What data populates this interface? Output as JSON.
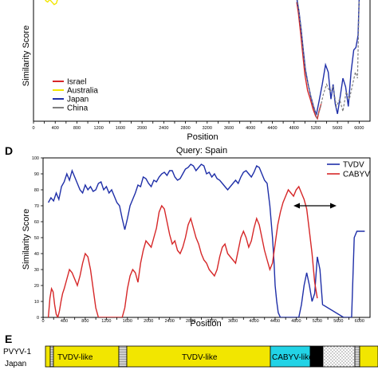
{
  "panel_top": {
    "xlabel": "Position",
    "ylabel": "Similarity Score",
    "x_ticks": [
      "0",
      "200",
      "400",
      "600",
      "800",
      "1000",
      "1200",
      "1400",
      "1600",
      "1800",
      "2000",
      "2200",
      "2400",
      "2600",
      "2800",
      "3000",
      "3200",
      "3400",
      "3600",
      "3800",
      "4000",
      "4200",
      "4400",
      "4600",
      "4800",
      "5000",
      "5200",
      "5400",
      "5600",
      "5800",
      "6000"
    ],
    "x_tick_labels": [
      "0",
      "400",
      "800",
      "1200",
      "1600",
      "2000",
      "2400",
      "2800",
      "3200",
      "3600",
      "4000",
      "4400",
      "4800",
      "5200",
      "5600",
      "6000"
    ],
    "legend": [
      {
        "name": "Israel",
        "color": "#d62728"
      },
      {
        "name": "Australia",
        "color": "#f2e600"
      },
      {
        "name": "Japan",
        "color": "#1f2fa8"
      },
      {
        "name": "China",
        "color": "#7f7f7f"
      }
    ]
  },
  "panel_d": {
    "letter": "D",
    "title": "Query: Spain",
    "xlabel": "Position",
    "ylabel": "Similarity Score",
    "legend": [
      {
        "name": "TVDV",
        "color": "#1f2fa8"
      },
      {
        "name": "CABYV",
        "color": "#d62728"
      }
    ]
  },
  "panel_e": {
    "letter": "E",
    "row_label_1": "PVYV-1",
    "row_label_2": "Japan",
    "segments": [
      {
        "label": "",
        "color": "#f2e600"
      },
      {
        "label": "TVDV-like",
        "color": "#f2e600"
      },
      {
        "label": "TVDV-like",
        "color": "#f2e600"
      },
      {
        "label": "CABYV-like",
        "color": "#22d3e6"
      }
    ]
  },
  "chart_data": [
    {
      "type": "line",
      "panel": "top",
      "xlabel": "Position",
      "ylabel": "Similarity Score",
      "xlim": [
        0,
        6200
      ],
      "ylim": [
        0,
        100
      ],
      "x_ticks": [
        0,
        200,
        400,
        600,
        800,
        1000,
        1200,
        1400,
        1600,
        1800,
        2000,
        2200,
        2400,
        2600,
        2800,
        3000,
        3200,
        3400,
        3600,
        3800,
        4000,
        4200,
        4400,
        4600,
        4800,
        5000,
        5200,
        5400,
        5600,
        5800,
        6000
      ],
      "series": [
        {
          "name": "Israel",
          "color": "#d62728",
          "x": [
            4850,
            4880,
            4920,
            4960,
            5000,
            5050,
            5100,
            5150,
            5200,
            5230,
            5260,
            5300
          ],
          "y": [
            97,
            88,
            72,
            55,
            38,
            25,
            18,
            10,
            4,
            2,
            8,
            14
          ]
        },
        {
          "name": "Australia",
          "color": "#f2e600",
          "x": [
            200,
            230,
            260,
            300,
            340,
            380,
            420,
            450
          ],
          "y": [
            100,
            98,
            97,
            99,
            97,
            95,
            96,
            100
          ]
        },
        {
          "name": "Japan",
          "color": "#1f2fa8",
          "x": [
            4850,
            4890,
            4930,
            4970,
            5010,
            5060,
            5110,
            5160,
            5210,
            5260,
            5320,
            5380,
            5430,
            5480,
            5520,
            5560,
            5600,
            5650,
            5700,
            5750,
            5800,
            5850,
            5900,
            5940,
            5980,
            6000
          ],
          "y": [
            100,
            90,
            75,
            58,
            42,
            30,
            20,
            12,
            5,
            16,
            30,
            46,
            40,
            18,
            30,
            14,
            6,
            20,
            35,
            28,
            12,
            40,
            58,
            60,
            70,
            100
          ]
        },
        {
          "name": "China",
          "color": "#7f7f7f",
          "x": [
            4860,
            4900,
            4940,
            4980,
            5020,
            5070,
            5120,
            5170,
            5220,
            5280,
            5340,
            5400,
            5460,
            5520,
            5580,
            5640,
            5700,
            5760,
            5820,
            5880,
            5930,
            5970,
            6000
          ],
          "y": [
            100,
            86,
            70,
            52,
            38,
            28,
            18,
            10,
            3,
            10,
            22,
            30,
            24,
            28,
            12,
            18,
            8,
            24,
            18,
            30,
            40,
            35,
            100
          ]
        }
      ]
    },
    {
      "type": "line",
      "panel": "D",
      "title": "Query: Spain",
      "xlabel": "Position",
      "ylabel": "Similarity Score",
      "xlim": [
        0,
        6200
      ],
      "ylim": [
        0,
        100
      ],
      "x_ticks": [
        0,
        200,
        400,
        600,
        800,
        1000,
        1200,
        1400,
        1600,
        1800,
        2000,
        2200,
        2400,
        2600,
        2800,
        3000,
        3200,
        3400,
        3600,
        3800,
        4000,
        4200,
        4400,
        4600,
        4800,
        5000,
        5200,
        5400,
        5600,
        5800,
        6000
      ],
      "x_tick_labels": [
        "0",
        "400",
        "800",
        "1200",
        "1600",
        "2000",
        "2400",
        "2800",
        "3200",
        "3600",
        "4000",
        "4400",
        "4800",
        "5200",
        "5600",
        "6000"
      ],
      "y_ticks": [
        0,
        10,
        20,
        30,
        40,
        50,
        60,
        70,
        80,
        90,
        100
      ],
      "series": [
        {
          "name": "TVDV",
          "color": "#1f2fa8",
          "x": [
            100,
            150,
            200,
            250,
            300,
            350,
            400,
            450,
            500,
            550,
            600,
            650,
            700,
            750,
            800,
            850,
            900,
            950,
            1000,
            1050,
            1100,
            1150,
            1200,
            1250,
            1300,
            1350,
            1400,
            1450,
            1500,
            1550,
            1600,
            1650,
            1700,
            1750,
            1800,
            1850,
            1900,
            1950,
            2000,
            2050,
            2100,
            2150,
            2200,
            2250,
            2300,
            2350,
            2400,
            2450,
            2500,
            2550,
            2600,
            2650,
            2700,
            2750,
            2800,
            2850,
            2900,
            2950,
            3000,
            3050,
            3100,
            3150,
            3200,
            3250,
            3300,
            3350,
            3400,
            3450,
            3500,
            3550,
            3600,
            3650,
            3700,
            3750,
            3800,
            3850,
            3900,
            3950,
            4000,
            4050,
            4100,
            4150,
            4200,
            4250,
            4300,
            4350,
            4380,
            4400,
            4430,
            4460,
            4500,
            4550,
            4600,
            4650,
            4700,
            4750,
            4800,
            4850,
            4900,
            4950,
            5000,
            5050,
            5100,
            5150,
            5200,
            5250,
            5300,
            5700,
            5750,
            5800,
            5850,
            5900,
            5950,
            6000,
            6050,
            6100
          ],
          "y": [
            72,
            75,
            73,
            78,
            74,
            82,
            85,
            90,
            86,
            92,
            88,
            84,
            80,
            78,
            83,
            80,
            82,
            79,
            80,
            84,
            85,
            80,
            82,
            78,
            80,
            76,
            72,
            70,
            62,
            55,
            62,
            70,
            74,
            78,
            83,
            82,
            88,
            87,
            84,
            82,
            86,
            85,
            88,
            90,
            91,
            89,
            92,
            92,
            88,
            86,
            87,
            90,
            93,
            94,
            96,
            95,
            92,
            94,
            96,
            95,
            90,
            91,
            88,
            90,
            87,
            86,
            84,
            82,
            80,
            82,
            84,
            86,
            84,
            88,
            91,
            92,
            90,
            88,
            91,
            95,
            94,
            90,
            86,
            84,
            70,
            50,
            35,
            20,
            10,
            3,
            0,
            0,
            0,
            0,
            0,
            0,
            0,
            0,
            8,
            20,
            28,
            20,
            10,
            15,
            38,
            30,
            8,
            0,
            0,
            0,
            0,
            50,
            54,
            54,
            54,
            54
          ]
        },
        {
          "name": "CABYV",
          "color": "#d62728",
          "x": [
            100,
            130,
            160,
            190,
            220,
            250,
            280,
            310,
            340,
            370,
            400,
            450,
            500,
            550,
            600,
            650,
            700,
            750,
            800,
            850,
            900,
            950,
            1000,
            1050,
            1100,
            1150,
            1200,
            1250,
            1300,
            1350,
            1400,
            1450,
            1500,
            1550,
            1600,
            1650,
            1700,
            1750,
            1800,
            1850,
            1900,
            1950,
            2000,
            2050,
            2100,
            2150,
            2200,
            2250,
            2300,
            2350,
            2400,
            2450,
            2500,
            2550,
            2600,
            2650,
            2700,
            2750,
            2800,
            2850,
            2900,
            2950,
            3000,
            3050,
            3100,
            3150,
            3200,
            3250,
            3300,
            3350,
            3400,
            3450,
            3500,
            3550,
            3600,
            3650,
            3700,
            3750,
            3800,
            3850,
            3900,
            3950,
            4000,
            4050,
            4100,
            4150,
            4200,
            4250,
            4300,
            4350,
            4400,
            4450,
            4500,
            4550,
            4600,
            4650,
            4700,
            4750,
            4800,
            4850,
            4900,
            4950,
            5000,
            5050,
            5100,
            5150,
            5200
          ],
          "y": [
            0,
            12,
            18,
            16,
            8,
            2,
            0,
            4,
            10,
            15,
            18,
            24,
            30,
            28,
            24,
            20,
            26,
            34,
            40,
            38,
            30,
            18,
            6,
            0,
            0,
            0,
            0,
            0,
            0,
            0,
            0,
            0,
            0,
            6,
            18,
            26,
            30,
            28,
            22,
            34,
            42,
            48,
            46,
            44,
            50,
            56,
            66,
            70,
            68,
            60,
            52,
            46,
            48,
            42,
            40,
            44,
            50,
            58,
            62,
            56,
            50,
            46,
            40,
            36,
            34,
            30,
            28,
            26,
            30,
            38,
            44,
            46,
            40,
            38,
            36,
            34,
            42,
            50,
            54,
            50,
            44,
            48,
            56,
            62,
            58,
            50,
            42,
            36,
            30,
            34,
            46,
            58,
            66,
            72,
            76,
            80,
            78,
            76,
            80,
            82,
            78,
            74,
            68,
            54,
            40,
            22,
            12
          ]
        }
      ]
    }
  ]
}
